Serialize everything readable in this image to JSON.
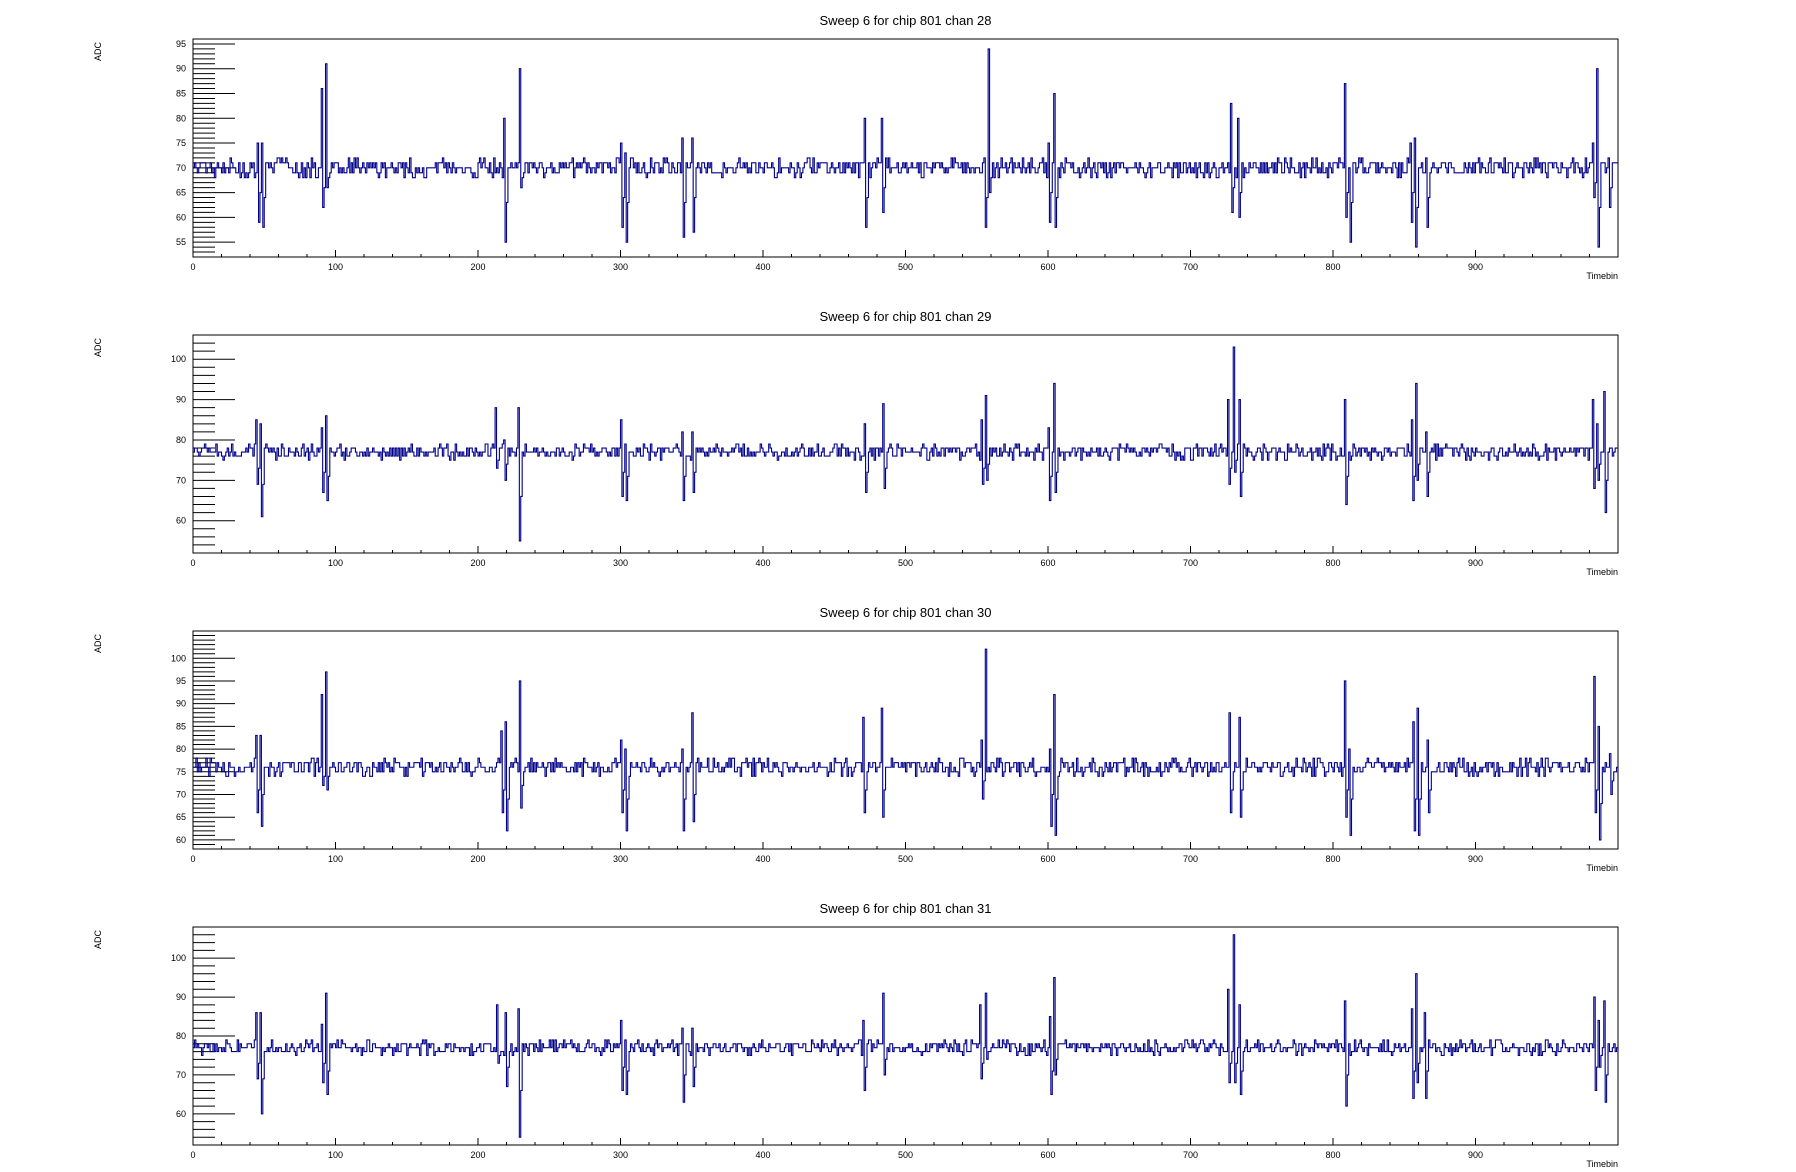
{
  "style": {
    "line_color": "#00008b",
    "axis_color": "#000000",
    "background": "#ffffff"
  },
  "chart_data": [
    {
      "type": "line",
      "title": "Sweep 6 for chip 801 chan 28",
      "xlabel": "Timebin",
      "ylabel": "ADC",
      "xlim": [
        0,
        1000
      ],
      "ylim": [
        52,
        96
      ],
      "xticks": [
        0,
        100,
        200,
        300,
        400,
        500,
        600,
        700,
        800,
        900
      ],
      "yticks": [
        55,
        60,
        65,
        70,
        75,
        80,
        85,
        90,
        95
      ],
      "baseline": 70,
      "spikes": [
        {
          "x": 45,
          "min": 59,
          "max": 75
        },
        {
          "x": 48,
          "min": 58,
          "max": 75
        },
        {
          "x": 90,
          "min": 62,
          "max": 86
        },
        {
          "x": 93,
          "min": 66,
          "max": 91
        },
        {
          "x": 220,
          "min": 70,
          "max": 78
        },
        {
          "x": 218,
          "min": 55,
          "max": 80
        },
        {
          "x": 229,
          "min": 66,
          "max": 90
        },
        {
          "x": 300,
          "min": 58,
          "max": 75
        },
        {
          "x": 303,
          "min": 55,
          "max": 73
        },
        {
          "x": 343,
          "min": 56,
          "max": 76
        },
        {
          "x": 350,
          "min": 57,
          "max": 76
        },
        {
          "x": 471,
          "min": 58,
          "max": 80
        },
        {
          "x": 483,
          "min": 61,
          "max": 80
        },
        {
          "x": 555,
          "min": 58,
          "max": 72
        },
        {
          "x": 558,
          "min": 65,
          "max": 94
        },
        {
          "x": 600,
          "min": 59,
          "max": 75
        },
        {
          "x": 604,
          "min": 58,
          "max": 85
        },
        {
          "x": 728,
          "min": 61,
          "max": 83
        },
        {
          "x": 733,
          "min": 60,
          "max": 80
        },
        {
          "x": 808,
          "min": 60,
          "max": 87
        },
        {
          "x": 811,
          "min": 55,
          "max": 70
        },
        {
          "x": 854,
          "min": 59,
          "max": 75
        },
        {
          "x": 857,
          "min": 54,
          "max": 76
        },
        {
          "x": 865,
          "min": 58,
          "max": 72
        },
        {
          "x": 982,
          "min": 64,
          "max": 75
        },
        {
          "x": 985,
          "min": 54,
          "max": 90
        },
        {
          "x": 993,
          "min": 62,
          "max": 72
        }
      ]
    },
    {
      "type": "line",
      "title": "Sweep 6 for chip 801 chan 29",
      "xlabel": "Timebin",
      "ylabel": "ADC",
      "xlim": [
        0,
        1000
      ],
      "ylim": [
        52,
        106
      ],
      "xticks": [
        0,
        100,
        200,
        300,
        400,
        500,
        600,
        700,
        800,
        900
      ],
      "yticks": [
        60,
        70,
        80,
        90,
        100
      ],
      "baseline": 77,
      "spikes": [
        {
          "x": 44,
          "min": 69,
          "max": 85
        },
        {
          "x": 47,
          "min": 61,
          "max": 84
        },
        {
          "x": 90,
          "min": 67,
          "max": 83
        },
        {
          "x": 93,
          "min": 65,
          "max": 86
        },
        {
          "x": 212,
          "min": 73,
          "max": 88
        },
        {
          "x": 218,
          "min": 70,
          "max": 80
        },
        {
          "x": 228,
          "min": 55,
          "max": 88
        },
        {
          "x": 300,
          "min": 66,
          "max": 85
        },
        {
          "x": 303,
          "min": 65,
          "max": 79
        },
        {
          "x": 343,
          "min": 65,
          "max": 82
        },
        {
          "x": 350,
          "min": 67,
          "max": 82
        },
        {
          "x": 471,
          "min": 67,
          "max": 84
        },
        {
          "x": 484,
          "min": 68,
          "max": 89
        },
        {
          "x": 553,
          "min": 69,
          "max": 85
        },
        {
          "x": 556,
          "min": 70,
          "max": 91
        },
        {
          "x": 600,
          "min": 65,
          "max": 83
        },
        {
          "x": 604,
          "min": 67,
          "max": 94
        },
        {
          "x": 726,
          "min": 69,
          "max": 90
        },
        {
          "x": 730,
          "min": 72,
          "max": 103
        },
        {
          "x": 734,
          "min": 66,
          "max": 90
        },
        {
          "x": 808,
          "min": 64,
          "max": 90
        },
        {
          "x": 855,
          "min": 65,
          "max": 85
        },
        {
          "x": 858,
          "min": 70,
          "max": 94
        },
        {
          "x": 865,
          "min": 66,
          "max": 82
        },
        {
          "x": 982,
          "min": 68,
          "max": 90
        },
        {
          "x": 985,
          "min": 70,
          "max": 84
        },
        {
          "x": 990,
          "min": 62,
          "max": 92
        }
      ]
    },
    {
      "type": "line",
      "title": "Sweep 6 for chip 801 chan 30",
      "xlabel": "Timebin",
      "ylabel": "ADC",
      "xlim": [
        0,
        1000
      ],
      "ylim": [
        58,
        106
      ],
      "xticks": [
        0,
        100,
        200,
        300,
        400,
        500,
        600,
        700,
        800,
        900
      ],
      "yticks": [
        60,
        65,
        70,
        75,
        80,
        85,
        90,
        95,
        100
      ],
      "baseline": 76,
      "spikes": [
        {
          "x": 44,
          "min": 66,
          "max": 83
        },
        {
          "x": 47,
          "min": 63,
          "max": 83
        },
        {
          "x": 90,
          "min": 72,
          "max": 92
        },
        {
          "x": 93,
          "min": 71,
          "max": 97
        },
        {
          "x": 216,
          "min": 66,
          "max": 84
        },
        {
          "x": 219,
          "min": 62,
          "max": 86
        },
        {
          "x": 229,
          "min": 67,
          "max": 95
        },
        {
          "x": 300,
          "min": 66,
          "max": 82
        },
        {
          "x": 303,
          "min": 62,
          "max": 80
        },
        {
          "x": 343,
          "min": 62,
          "max": 80
        },
        {
          "x": 350,
          "min": 64,
          "max": 88
        },
        {
          "x": 470,
          "min": 66,
          "max": 87
        },
        {
          "x": 483,
          "min": 65,
          "max": 89
        },
        {
          "x": 553,
          "min": 69,
          "max": 82
        },
        {
          "x": 556,
          "min": 75,
          "max": 102
        },
        {
          "x": 601,
          "min": 63,
          "max": 80
        },
        {
          "x": 604,
          "min": 61,
          "max": 92
        },
        {
          "x": 727,
          "min": 66,
          "max": 88
        },
        {
          "x": 734,
          "min": 65,
          "max": 87
        },
        {
          "x": 808,
          "min": 65,
          "max": 95
        },
        {
          "x": 811,
          "min": 61,
          "max": 80
        },
        {
          "x": 856,
          "min": 62,
          "max": 86
        },
        {
          "x": 859,
          "min": 61,
          "max": 89
        },
        {
          "x": 866,
          "min": 66,
          "max": 82
        },
        {
          "x": 983,
          "min": 66,
          "max": 96
        },
        {
          "x": 986,
          "min": 60,
          "max": 85
        },
        {
          "x": 994,
          "min": 70,
          "max": 79
        }
      ]
    },
    {
      "type": "line",
      "title": "Sweep 6 for chip 801 chan 31",
      "xlabel": "Timebin",
      "ylabel": "ADC",
      "xlim": [
        0,
        1000
      ],
      "ylim": [
        52,
        108
      ],
      "xticks": [
        0,
        100,
        200,
        300,
        400,
        500,
        600,
        700,
        800,
        900
      ],
      "yticks": [
        60,
        70,
        80,
        90,
        100
      ],
      "baseline": 77,
      "spikes": [
        {
          "x": 44,
          "min": 69,
          "max": 86
        },
        {
          "x": 47,
          "min": 60,
          "max": 86
        },
        {
          "x": 90,
          "min": 68,
          "max": 83
        },
        {
          "x": 93,
          "min": 65,
          "max": 91
        },
        {
          "x": 213,
          "min": 73,
          "max": 88
        },
        {
          "x": 219,
          "min": 67,
          "max": 86
        },
        {
          "x": 228,
          "min": 54,
          "max": 87
        },
        {
          "x": 300,
          "min": 66,
          "max": 84
        },
        {
          "x": 303,
          "min": 65,
          "max": 79
        },
        {
          "x": 343,
          "min": 63,
          "max": 82
        },
        {
          "x": 350,
          "min": 67,
          "max": 82
        },
        {
          "x": 470,
          "min": 66,
          "max": 84
        },
        {
          "x": 484,
          "min": 70,
          "max": 91
        },
        {
          "x": 552,
          "min": 69,
          "max": 88
        },
        {
          "x": 556,
          "min": 74,
          "max": 91
        },
        {
          "x": 601,
          "min": 65,
          "max": 85
        },
        {
          "x": 604,
          "min": 70,
          "max": 95
        },
        {
          "x": 726,
          "min": 68,
          "max": 92
        },
        {
          "x": 730,
          "min": 68,
          "max": 106
        },
        {
          "x": 734,
          "min": 65,
          "max": 88
        },
        {
          "x": 808,
          "min": 62,
          "max": 89
        },
        {
          "x": 855,
          "min": 64,
          "max": 87
        },
        {
          "x": 858,
          "min": 68,
          "max": 96
        },
        {
          "x": 864,
          "min": 64,
          "max": 86
        },
        {
          "x": 983,
          "min": 66,
          "max": 90
        },
        {
          "x": 986,
          "min": 72,
          "max": 84
        },
        {
          "x": 990,
          "min": 63,
          "max": 89
        }
      ]
    }
  ]
}
